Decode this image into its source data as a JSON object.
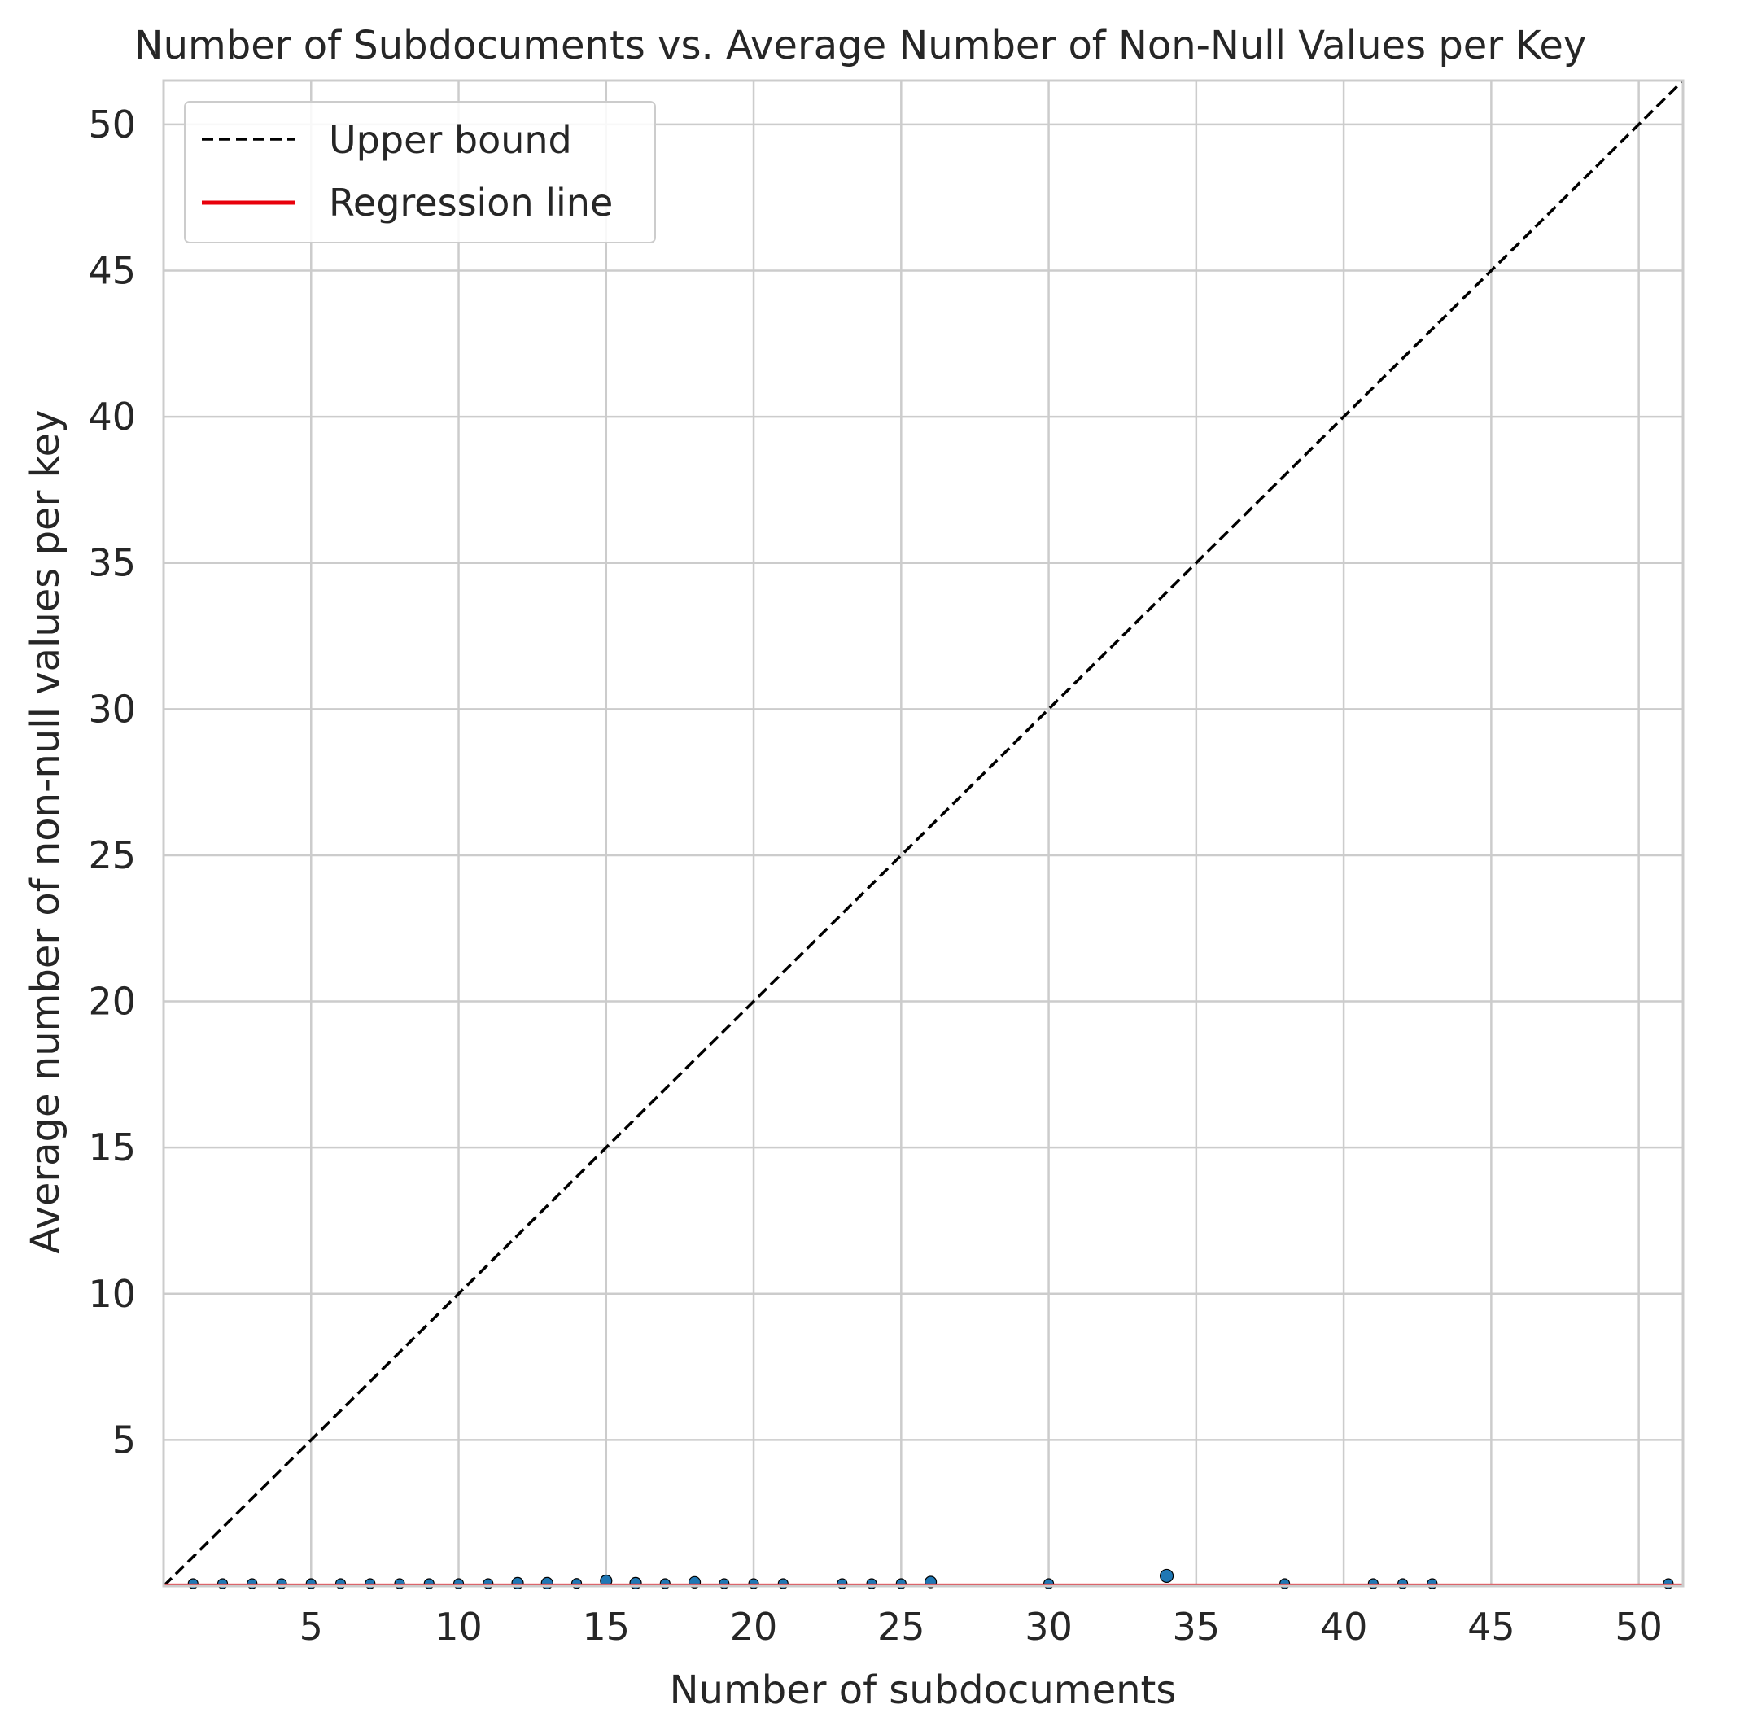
{
  "chart_data": {
    "type": "scatter",
    "title": "Number of Subdocuments vs. Average Number of Non-Null Values per Key",
    "xlabel": "Number of subdocuments",
    "ylabel": "Average number of non-null values per key",
    "xlim": [
      0,
      51.5
    ],
    "ylim": [
      0,
      51.5
    ],
    "xticks": [
      5,
      10,
      15,
      20,
      25,
      30,
      35,
      40,
      45,
      50
    ],
    "yticks": [
      5,
      10,
      15,
      20,
      25,
      30,
      35,
      40,
      45,
      50
    ],
    "grid": true,
    "legend": {
      "position": "top-left",
      "entries": [
        {
          "label": "Upper bound",
          "style": "dashed",
          "color": "#000000"
        },
        {
          "label": "Regression line",
          "style": "solid",
          "color": "#e8000b"
        }
      ]
    },
    "upper_bound": {
      "x": [
        0,
        51.5
      ],
      "y": [
        0,
        51.5
      ]
    },
    "regression_line": {
      "x": [
        0,
        51.5
      ],
      "y": [
        0.04,
        0.04
      ]
    },
    "points_color": "#1f77b4",
    "points": [
      {
        "x": 1,
        "y": 0.02
      },
      {
        "x": 2,
        "y": 0.05
      },
      {
        "x": 3,
        "y": 0.04
      },
      {
        "x": 4,
        "y": 0.06
      },
      {
        "x": 5,
        "y": 0.08
      },
      {
        "x": 6,
        "y": 0.04
      },
      {
        "x": 7,
        "y": 0.06
      },
      {
        "x": 8,
        "y": 0.04
      },
      {
        "x": 9,
        "y": 0.07
      },
      {
        "x": 10,
        "y": 0.04
      },
      {
        "x": 11,
        "y": 0.08
      },
      {
        "x": 12,
        "y": 0.1
      },
      {
        "x": 13,
        "y": 0.1
      },
      {
        "x": 14,
        "y": 0.09
      },
      {
        "x": 15,
        "y": 0.18
      },
      {
        "x": 16,
        "y": 0.1
      },
      {
        "x": 17,
        "y": 0.07
      },
      {
        "x": 18,
        "y": 0.13
      },
      {
        "x": 19,
        "y": 0.04
      },
      {
        "x": 20,
        "y": 0.05
      },
      {
        "x": 21,
        "y": 0.02
      },
      {
        "x": 23,
        "y": 0.01
      },
      {
        "x": 24,
        "y": 0.01
      },
      {
        "x": 25,
        "y": 0.02
      },
      {
        "x": 26,
        "y": 0.14
      },
      {
        "x": 30,
        "y": 0.01
      },
      {
        "x": 34,
        "y": 0.35
      },
      {
        "x": 38,
        "y": 0.01
      },
      {
        "x": 41,
        "y": 0.01
      },
      {
        "x": 42,
        "y": 0.01
      },
      {
        "x": 43,
        "y": 0.01
      },
      {
        "x": 51,
        "y": 0.01
      }
    ]
  }
}
